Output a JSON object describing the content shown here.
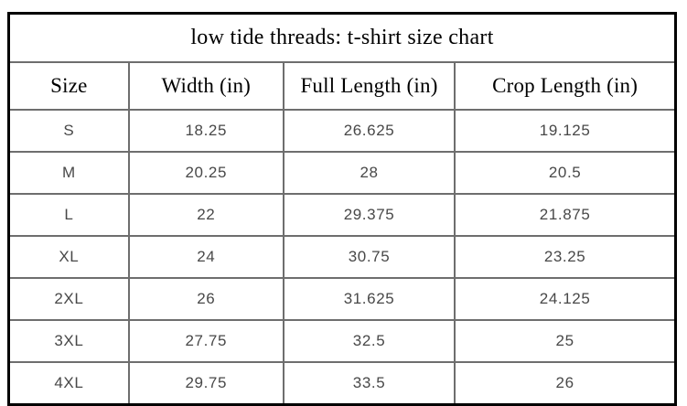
{
  "title": "low tide threads: t-shirt size chart",
  "table": {
    "columns": [
      "Size",
      "Width (in)",
      "Full Length (in)",
      "Crop Length (in)"
    ],
    "rows": [
      [
        "S",
        "18.25",
        "26.625",
        "19.125"
      ],
      [
        "M",
        "20.25",
        "28",
        "20.5"
      ],
      [
        "L",
        "22",
        "29.375",
        "21.875"
      ],
      [
        "XL",
        "24",
        "30.75",
        "23.25"
      ],
      [
        "2XL",
        "26",
        "31.625",
        "24.125"
      ],
      [
        "3XL",
        "27.75",
        "32.5",
        "25"
      ],
      [
        "4XL",
        "29.75",
        "33.5",
        "26"
      ]
    ]
  },
  "chart_data": {
    "type": "table",
    "title": "low tide threads: t-shirt size chart",
    "columns": [
      "Size",
      "Width (in)",
      "Full Length (in)",
      "Crop Length (in)"
    ],
    "rows": [
      [
        "S",
        18.25,
        26.625,
        19.125
      ],
      [
        "M",
        20.25,
        28,
        20.5
      ],
      [
        "L",
        22,
        29.375,
        21.875
      ],
      [
        "XL",
        24,
        30.75,
        23.25
      ],
      [
        "2XL",
        26,
        31.625,
        24.125
      ],
      [
        "3XL",
        27.75,
        32.5,
        25
      ],
      [
        "4XL",
        29.75,
        33.5,
        26
      ]
    ]
  },
  "colors": {
    "background": "#ffffff",
    "outer_border": "#000000",
    "grid_line": "#6e6e6e",
    "title_text": "#000000",
    "header_text": "#000000",
    "data_text": "#484848"
  }
}
